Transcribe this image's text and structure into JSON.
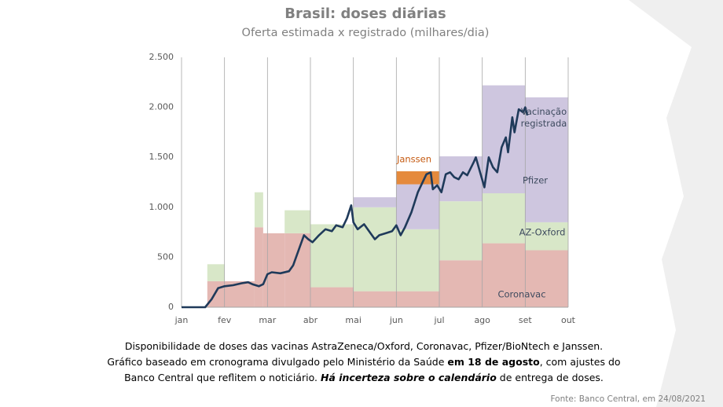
{
  "chart_data": {
    "type": "stacked-step-area-line",
    "title": "Brasil: doses diárias",
    "subtitle": "Oferta estimada x registrado (milhares/dia)",
    "edges": [
      0,
      0.6,
      1,
      1.7,
      1.9,
      2.4,
      3,
      4,
      5,
      6,
      7,
      8,
      9
    ],
    "series": [
      {
        "name": "Coronavac",
        "color": "#e4b8b3",
        "values": [
          0,
          260,
          260,
          800,
          740,
          740,
          200,
          160,
          160,
          470,
          640,
          570
        ]
      },
      {
        "name": "AZ-Oxford",
        "color": "#d8e7c8",
        "values": [
          0,
          170,
          0,
          350,
          0,
          230,
          630,
          840,
          620,
          590,
          500,
          280
        ]
      },
      {
        "name": "Pfizer",
        "color": "#cec6df",
        "values": [
          0,
          0,
          0,
          0,
          0,
          0,
          0,
          100,
          450,
          450,
          1080,
          1250
        ]
      },
      {
        "name": "Janssen",
        "color": "#e58a3c",
        "values": [
          0,
          0,
          0,
          0,
          0,
          0,
          0,
          0,
          130,
          0,
          0,
          0
        ]
      }
    ],
    "line": {
      "name": "Vacinação registrada",
      "color": "#1f3a5a",
      "x": [
        0,
        0.55,
        0.7,
        0.85,
        1.0,
        1.2,
        1.4,
        1.55,
        1.65,
        1.8,
        1.9,
        2.0,
        2.1,
        2.3,
        2.5,
        2.6,
        2.75,
        2.85,
        2.95,
        3.05,
        3.2,
        3.35,
        3.5,
        3.6,
        3.75,
        3.85,
        3.95,
        4.0,
        4.1,
        4.25,
        4.4,
        4.5,
        4.6,
        4.75,
        4.9,
        5.0,
        5.1,
        5.2,
        5.35,
        5.5,
        5.6,
        5.7,
        5.8,
        5.85,
        5.95,
        6.05,
        6.15,
        6.25,
        6.35,
        6.45,
        6.55,
        6.65,
        6.8,
        6.85,
        6.95,
        7.05,
        7.15,
        7.25,
        7.35,
        7.45,
        7.55,
        7.6,
        7.7,
        7.75,
        7.85,
        7.95,
        8.0,
        8.05
      ],
      "values": [
        0,
        0,
        80,
        190,
        210,
        220,
        240,
        250,
        230,
        210,
        230,
        330,
        350,
        340,
        360,
        420,
        600,
        720,
        680,
        650,
        720,
        780,
        760,
        820,
        800,
        890,
        1020,
        850,
        780,
        830,
        740,
        680,
        720,
        740,
        760,
        820,
        720,
        800,
        950,
        1150,
        1240,
        1330,
        1350,
        1180,
        1220,
        1150,
        1330,
        1350,
        1300,
        1280,
        1350,
        1320,
        1450,
        1500,
        1350,
        1200,
        1500,
        1400,
        1350,
        1600,
        1700,
        1550,
        1900,
        1750,
        1980,
        1950,
        2000,
        1920
      ]
    },
    "xlim": [
      0,
      9
    ],
    "xticks": [
      {
        "value": 0,
        "label": "jan"
      },
      {
        "value": 1,
        "label": "fev"
      },
      {
        "value": 2,
        "label": "mar"
      },
      {
        "value": 3,
        "label": "abr"
      },
      {
        "value": 4,
        "label": "mai"
      },
      {
        "value": 5,
        "label": "jun"
      },
      {
        "value": 6,
        "label": "jul"
      },
      {
        "value": 7,
        "label": "ago"
      },
      {
        "value": 8,
        "label": "set"
      },
      {
        "value": 9,
        "label": "out"
      }
    ],
    "ylim": [
      0,
      2500
    ],
    "yticks": [
      0,
      500,
      {
        "value": 1000,
        "label": "1.000"
      },
      {
        "value": 1500,
        "label": "1.500"
      },
      {
        "value": 2000,
        "label": "2.000"
      },
      {
        "value": 2500,
        "label": "2.500"
      }
    ],
    "grid": "x",
    "caption": [
      [
        {
          "text": "Disponibilidade de doses das vacinas AstraZeneca/Oxford, Coronavac, Pfizer/BioNtech e Janssen.",
          "style": "normal"
        }
      ],
      [
        {
          "text": "Gráfico baseado em cronograma divulgado pelo Ministério da Saúde ",
          "style": "normal"
        },
        {
          "text": "em 18 de agosto",
          "style": "bold"
        },
        {
          "text": ", com ajustes do",
          "style": "normal"
        }
      ],
      [
        {
          "text": "Banco Central que reflitem o noticiário. ",
          "style": "normal"
        },
        {
          "text": "Há incerteza sobre o calendário",
          "style": "bold-italic"
        },
        {
          "text": " de entrega de doses.",
          "style": "normal"
        }
      ]
    ],
    "source": "Fonte: Banco Central, em 24/08/2021"
  }
}
